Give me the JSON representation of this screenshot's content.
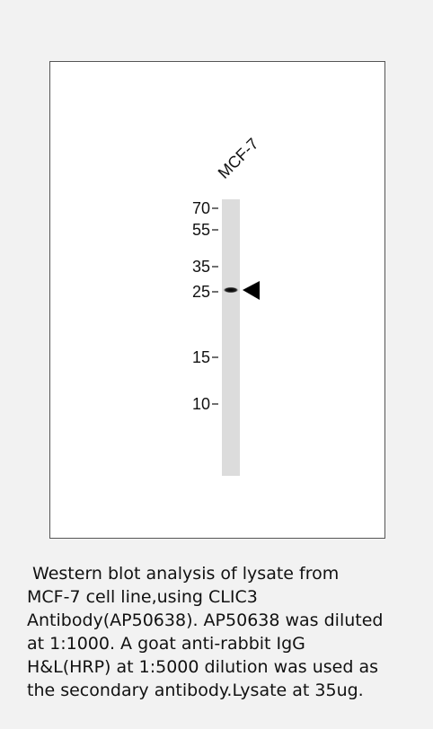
{
  "figure": {
    "lane_label": "MCF-7",
    "markers": [
      "70",
      "55",
      "35",
      "25",
      "15",
      "10"
    ]
  },
  "caption": {
    "lines": [
      " Western blot analysis of lysate from",
      "MCF-7 cell line,using CLIC3",
      "Antibody(AP50638). AP50638 was diluted",
      "at 1:1000. A goat anti-rabbit IgG",
      "H&L(HRP) at 1:5000 dilution was used as",
      "the secondary antibody.Lysate at 35ug."
    ]
  }
}
